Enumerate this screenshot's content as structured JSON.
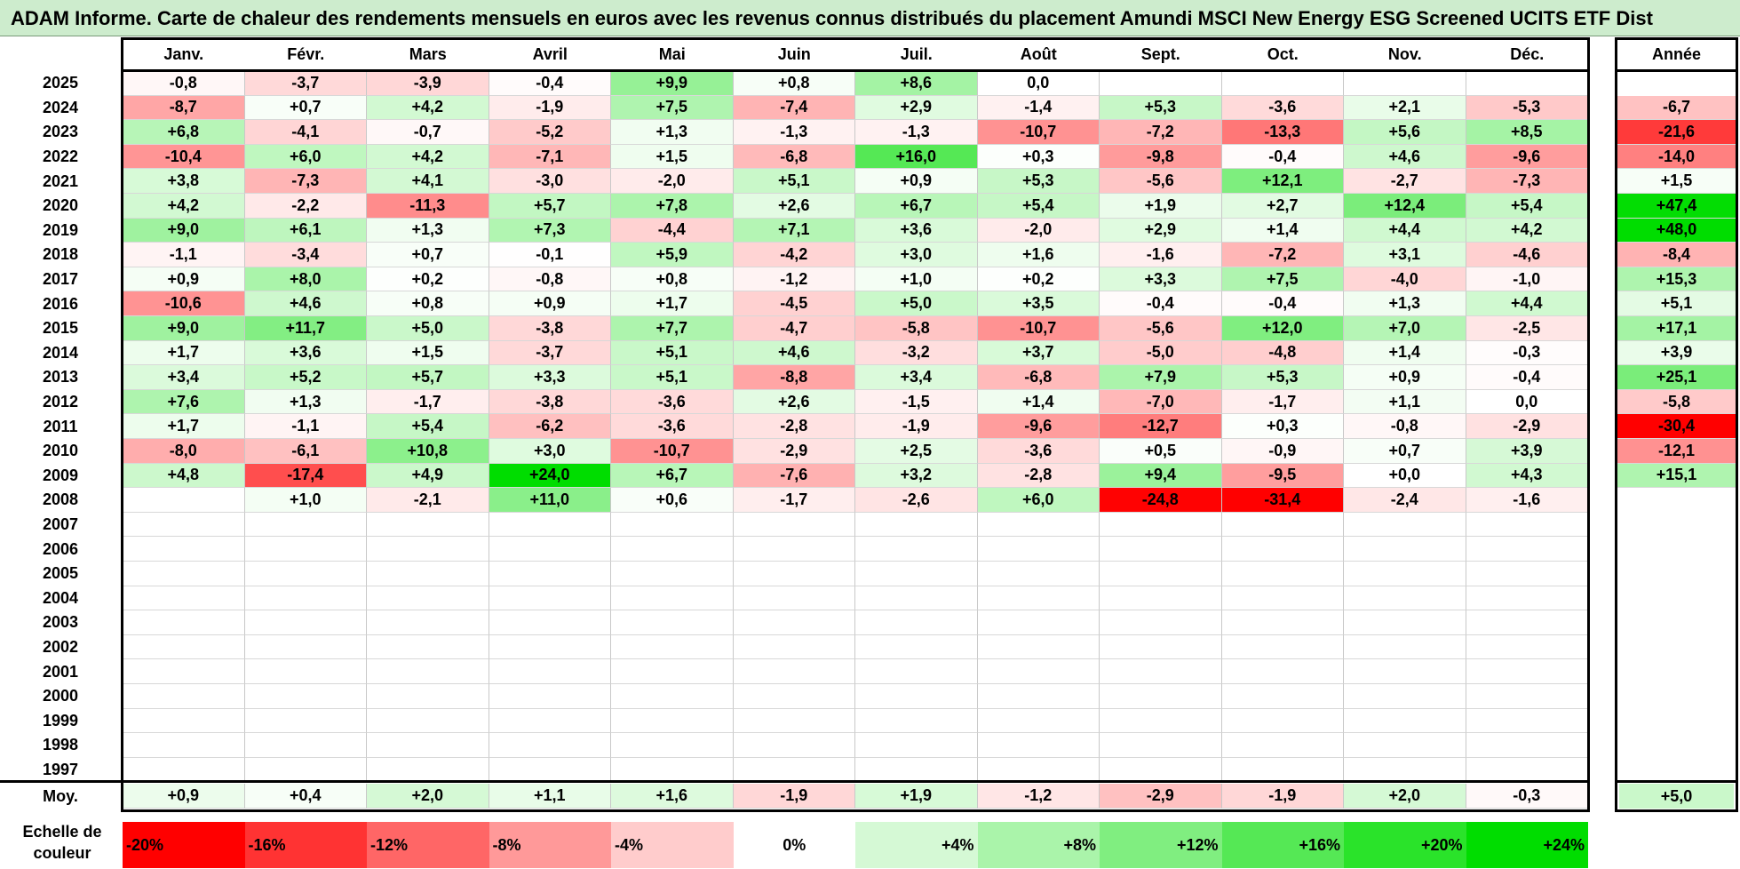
{
  "title": "ADAM Informe. Carte de chaleur des rendements mensuels en euros avec les revenus connus distribués du placement Amundi MSCI New Energy ESG Screened UCITS ETF Dist",
  "months": [
    "Janv.",
    "Févr.",
    "Mars",
    "Avril",
    "Mai",
    "Juin",
    "Juil.",
    "Août",
    "Sept.",
    "Oct.",
    "Nov.",
    "Déc."
  ],
  "year_header": "Année",
  "avg_label": "Moy.",
  "legend_label": "Echelle de couleur",
  "chart_data": {
    "type": "heatmap",
    "rows": [
      {
        "year": "2025",
        "months": [
          "-0,8",
          "-3,7",
          "-3,9",
          "-0,4",
          "+9,9",
          "+0,8",
          "+8,6",
          "0,0",
          "",
          "",
          "",
          ""
        ],
        "annual": ""
      },
      {
        "year": "2024",
        "months": [
          "-8,7",
          "+0,7",
          "+4,2",
          "-1,9",
          "+7,5",
          "-7,4",
          "+2,9",
          "-1,4",
          "+5,3",
          "-3,6",
          "+2,1",
          "-5,3"
        ],
        "annual": "-6,7"
      },
      {
        "year": "2023",
        "months": [
          "+6,8",
          "-4,1",
          "-0,7",
          "-5,2",
          "+1,3",
          "-1,3",
          "-1,3",
          "-10,7",
          "-7,2",
          "-13,3",
          "+5,6",
          "+8,5"
        ],
        "annual": "-21,6"
      },
      {
        "year": "2022",
        "months": [
          "-10,4",
          "+6,0",
          "+4,2",
          "-7,1",
          "+1,5",
          "-6,8",
          "+16,0",
          "+0,3",
          "-9,8",
          "-0,4",
          "+4,6",
          "-9,6"
        ],
        "annual": "-14,0"
      },
      {
        "year": "2021",
        "months": [
          "+3,8",
          "-7,3",
          "+4,1",
          "-3,0",
          "-2,0",
          "+5,1",
          "+0,9",
          "+5,3",
          "-5,6",
          "+12,1",
          "-2,7",
          "-7,3"
        ],
        "annual": "+1,5"
      },
      {
        "year": "2020",
        "months": [
          "+4,2",
          "-2,2",
          "-11,3",
          "+5,7",
          "+7,8",
          "+2,6",
          "+6,7",
          "+5,4",
          "+1,9",
          "+2,7",
          "+12,4",
          "+5,4"
        ],
        "annual": "+47,4"
      },
      {
        "year": "2019",
        "months": [
          "+9,0",
          "+6,1",
          "+1,3",
          "+7,3",
          "-4,4",
          "+7,1",
          "+3,6",
          "-2,0",
          "+2,9",
          "+1,4",
          "+4,4",
          "+4,2"
        ],
        "annual": "+48,0"
      },
      {
        "year": "2018",
        "months": [
          "-1,1",
          "-3,4",
          "+0,7",
          "-0,1",
          "+5,9",
          "-4,2",
          "+3,0",
          "+1,6",
          "-1,6",
          "-7,2",
          "+3,1",
          "-4,6"
        ],
        "annual": "-8,4"
      },
      {
        "year": "2017",
        "months": [
          "+0,9",
          "+8,0",
          "+0,2",
          "-0,8",
          "+0,8",
          "-1,2",
          "+1,0",
          "+0,2",
          "+3,3",
          "+7,5",
          "-4,0",
          "-1,0"
        ],
        "annual": "+15,3"
      },
      {
        "year": "2016",
        "months": [
          "-10,6",
          "+4,6",
          "+0,8",
          "+0,9",
          "+1,7",
          "-4,5",
          "+5,0",
          "+3,5",
          "-0,4",
          "-0,4",
          "+1,3",
          "+4,4"
        ],
        "annual": "+5,1"
      },
      {
        "year": "2015",
        "months": [
          "+9,0",
          "+11,7",
          "+5,0",
          "-3,8",
          "+7,7",
          "-4,7",
          "-5,8",
          "-10,7",
          "-5,6",
          "+12,0",
          "+7,0",
          "-2,5"
        ],
        "annual": "+17,1"
      },
      {
        "year": "2014",
        "months": [
          "+1,7",
          "+3,6",
          "+1,5",
          "-3,7",
          "+5,1",
          "+4,6",
          "-3,2",
          "+3,7",
          "-5,0",
          "-4,8",
          "+1,4",
          "-0,3"
        ],
        "annual": "+3,9"
      },
      {
        "year": "2013",
        "months": [
          "+3,4",
          "+5,2",
          "+5,7",
          "+3,3",
          "+5,1",
          "-8,8",
          "+3,4",
          "-6,8",
          "+7,9",
          "+5,3",
          "+0,9",
          "-0,4"
        ],
        "annual": "+25,1"
      },
      {
        "year": "2012",
        "months": [
          "+7,6",
          "+1,3",
          "-1,7",
          "-3,8",
          "-3,6",
          "+2,6",
          "-1,5",
          "+1,4",
          "-7,0",
          "-1,7",
          "+1,1",
          "0,0"
        ],
        "annual": "-5,8"
      },
      {
        "year": "2011",
        "months": [
          "+1,7",
          "-1,1",
          "+5,4",
          "-6,2",
          "-3,6",
          "-2,8",
          "-1,9",
          "-9,6",
          "-12,7",
          "+0,3",
          "-0,8",
          "-2,9"
        ],
        "annual": "-30,4"
      },
      {
        "year": "2010",
        "months": [
          "-8,0",
          "-6,1",
          "+10,8",
          "+3,0",
          "-10,7",
          "-2,9",
          "+2,5",
          "-3,6",
          "+0,5",
          "-0,9",
          "+0,7",
          "+3,9"
        ],
        "annual": "-12,1"
      },
      {
        "year": "2009",
        "months": [
          "+4,8",
          "-17,4",
          "+4,9",
          "+24,0",
          "+6,7",
          "-7,6",
          "+3,2",
          "-2,8",
          "+9,4",
          "-9,5",
          "+0,0",
          "+4,3"
        ],
        "annual": "+15,1"
      },
      {
        "year": "2008",
        "months": [
          "",
          "+1,0",
          "-2,1",
          "+11,0",
          "+0,6",
          "-1,7",
          "-2,6",
          "+6,0",
          "-24,8",
          "-31,4",
          "-2,4",
          "-1,6"
        ],
        "annual": ""
      },
      {
        "year": "2007",
        "months": [
          "",
          "",
          "",
          "",
          "",
          "",
          "",
          "",
          "",
          "",
          "",
          ""
        ],
        "annual": ""
      },
      {
        "year": "2006",
        "months": [
          "",
          "",
          "",
          "",
          "",
          "",
          "",
          "",
          "",
          "",
          "",
          ""
        ],
        "annual": ""
      },
      {
        "year": "2005",
        "months": [
          "",
          "",
          "",
          "",
          "",
          "",
          "",
          "",
          "",
          "",
          "",
          ""
        ],
        "annual": ""
      },
      {
        "year": "2004",
        "months": [
          "",
          "",
          "",
          "",
          "",
          "",
          "",
          "",
          "",
          "",
          "",
          ""
        ],
        "annual": ""
      },
      {
        "year": "2003",
        "months": [
          "",
          "",
          "",
          "",
          "",
          "",
          "",
          "",
          "",
          "",
          "",
          ""
        ],
        "annual": ""
      },
      {
        "year": "2002",
        "months": [
          "",
          "",
          "",
          "",
          "",
          "",
          "",
          "",
          "",
          "",
          "",
          ""
        ],
        "annual": ""
      },
      {
        "year": "2001",
        "months": [
          "",
          "",
          "",
          "",
          "",
          "",
          "",
          "",
          "",
          "",
          "",
          ""
        ],
        "annual": ""
      },
      {
        "year": "2000",
        "months": [
          "",
          "",
          "",
          "",
          "",
          "",
          "",
          "",
          "",
          "",
          "",
          ""
        ],
        "annual": ""
      },
      {
        "year": "1999",
        "months": [
          "",
          "",
          "",
          "",
          "",
          "",
          "",
          "",
          "",
          "",
          "",
          ""
        ],
        "annual": ""
      },
      {
        "year": "1998",
        "months": [
          "",
          "",
          "",
          "",
          "",
          "",
          "",
          "",
          "",
          "",
          "",
          ""
        ],
        "annual": ""
      },
      {
        "year": "1997",
        "months": [
          "",
          "",
          "",
          "",
          "",
          "",
          "",
          "",
          "",
          "",
          "",
          ""
        ],
        "annual": ""
      }
    ],
    "averages": {
      "months": [
        "+0,9",
        "+0,4",
        "+2,0",
        "+1,1",
        "+1,6",
        "-1,9",
        "+1,9",
        "-1,2",
        "-2,9",
        "-1,9",
        "+2,0",
        "-0,3"
      ],
      "annual": "+5,0"
    },
    "scale": [
      "-20%",
      "-16%",
      "-12%",
      "-8%",
      "-4%",
      "0%",
      "+4%",
      "+8%",
      "+12%",
      "+16%",
      "+20%",
      "+24%"
    ],
    "colors": {
      "negative": "#ff0000",
      "neutral": "#ffffff",
      "positive": "#00dd00",
      "title_bg": "#cdeccd"
    }
  }
}
